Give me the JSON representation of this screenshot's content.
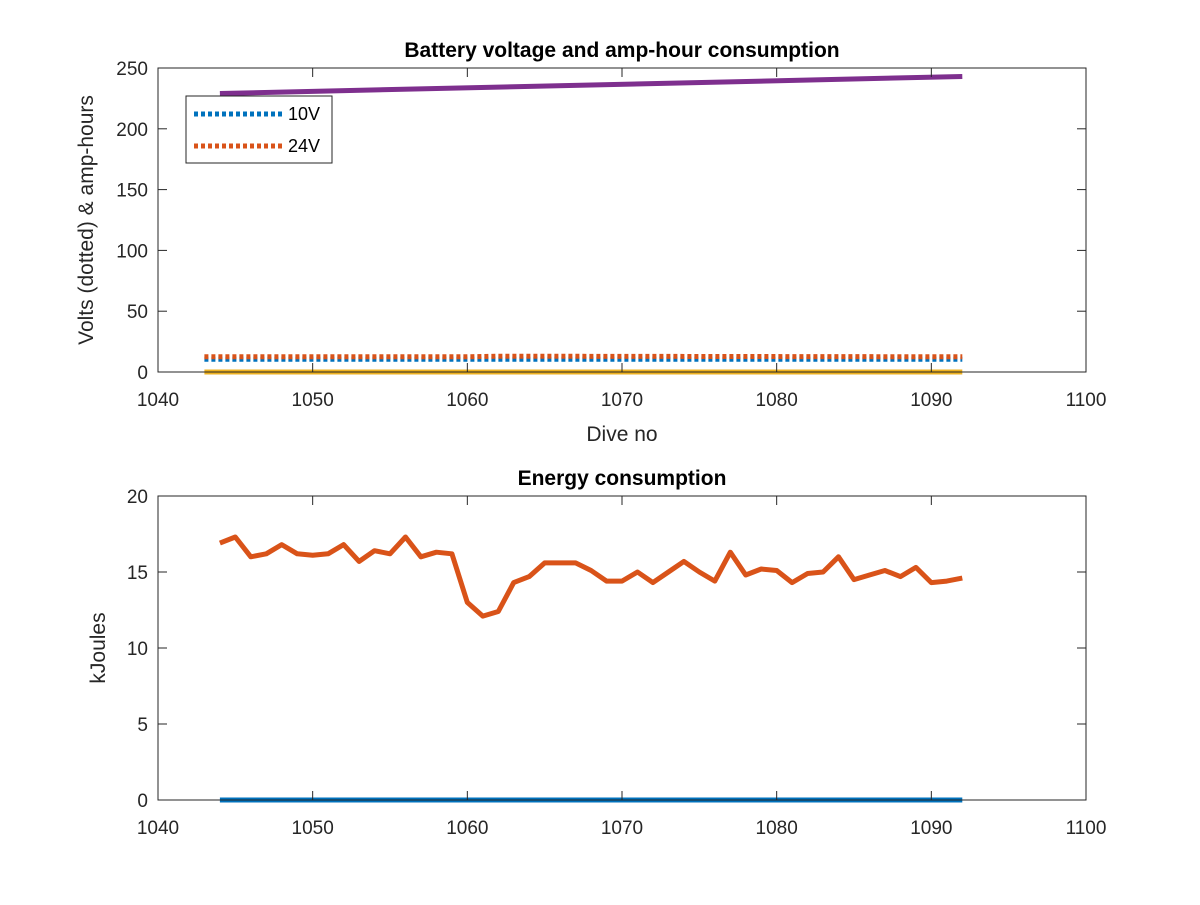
{
  "colors": {
    "blue": "#0072BD",
    "orange": "#D95319",
    "yellow": "#EDB120",
    "purple": "#7E2F8E",
    "axis": "#262626"
  },
  "chart_data": [
    {
      "type": "line",
      "title": "Battery voltage and amp-hour consumption",
      "xlabel": "Dive no",
      "ylabel": "Volts (dotted) & amp-hours",
      "xlim": [
        1040,
        1100
      ],
      "ylim": [
        0,
        250
      ],
      "xticks": [
        "1040",
        "1050",
        "1060",
        "1070",
        "1080",
        "1090",
        "1100"
      ],
      "yticks": [
        "0",
        "50",
        "100",
        "150",
        "200",
        "250"
      ],
      "grid": false,
      "legend_position": "top-left",
      "series": [
        {
          "name": "10V",
          "style": "dotted",
          "color": "blue",
          "x": [
            1043,
            1092
          ],
          "y": [
            10.5,
            10.5
          ]
        },
        {
          "name": "24V",
          "style": "dotted",
          "color": "orange",
          "x": [
            1043,
            1060,
            1062,
            1092
          ],
          "y": [
            12.5,
            12.5,
            13,
            12.5
          ]
        },
        {
          "style": "solid",
          "color": "yellow",
          "x": [
            1043,
            1092
          ],
          "y": [
            0,
            0
          ]
        },
        {
          "style": "solid",
          "color": "purple",
          "x": [
            1044,
            1092
          ],
          "y": [
            229,
            243
          ]
        }
      ]
    },
    {
      "type": "line",
      "title": "Energy consumption",
      "xlabel": "",
      "ylabel": "kJoules",
      "xlim": [
        1040,
        1100
      ],
      "ylim": [
        0,
        20
      ],
      "xticks": [
        "1040",
        "1050",
        "1060",
        "1070",
        "1080",
        "1090",
        "1100"
      ],
      "yticks": [
        "0",
        "5",
        "10",
        "15",
        "20"
      ],
      "grid": false,
      "series": [
        {
          "style": "solid",
          "color": "orange",
          "x": [
            1044,
            1045,
            1046,
            1047,
            1048,
            1049,
            1050,
            1051,
            1052,
            1053,
            1054,
            1055,
            1056,
            1057,
            1058,
            1059,
            1060,
            1061,
            1062,
            1063,
            1064,
            1065,
            1066,
            1067,
            1068,
            1069,
            1070,
            1071,
            1072,
            1073,
            1074,
            1075,
            1076,
            1077,
            1078,
            1079,
            1080,
            1081,
            1082,
            1083,
            1084,
            1085,
            1086,
            1087,
            1088,
            1089,
            1090,
            1091,
            1092
          ],
          "y": [
            16.9,
            17.3,
            16.0,
            16.2,
            16.8,
            16.2,
            16.1,
            16.2,
            16.8,
            15.7,
            16.4,
            16.2,
            17.3,
            16.0,
            16.3,
            16.2,
            13.0,
            12.1,
            12.4,
            14.3,
            14.7,
            15.6,
            15.6,
            15.6,
            15.1,
            14.4,
            14.4,
            15.0,
            14.3,
            15.0,
            15.7,
            15.0,
            14.4,
            16.3,
            14.8,
            15.2,
            15.1,
            14.3,
            14.9,
            15.0,
            16.0,
            14.5,
            14.8,
            15.1,
            14.7,
            15.3,
            14.3,
            14.4,
            14.6
          ]
        },
        {
          "style": "solid",
          "color": "blue",
          "x": [
            1044,
            1092
          ],
          "y": [
            0,
            0
          ]
        }
      ]
    }
  ]
}
